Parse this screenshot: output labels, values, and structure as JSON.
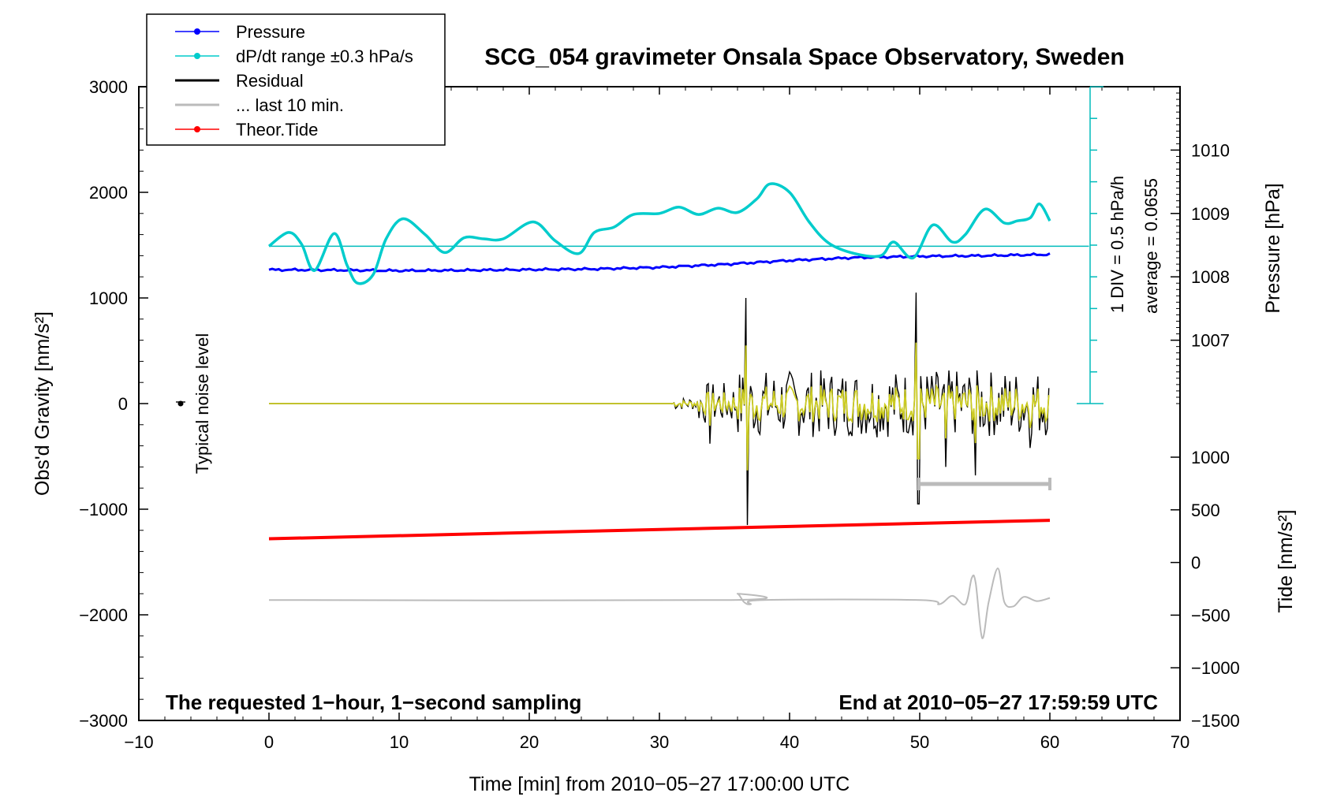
{
  "chart_data": {
    "type": "line",
    "title": "SCG_054 gravimeter Onsala Space Observatory, Sweden",
    "xlabel": "Time [min] from 2010−05−27 17:00:00 UTC",
    "ylabel_left": "Obs'd Gravity [nm/s²]",
    "ylabel_right_top": "Pressure [hPa]",
    "ylabel_right_bottom": "Tide [nm/s²]",
    "xlim": [
      -10,
      70
    ],
    "ylim_left": [
      -3000,
      3000
    ],
    "x_ticks": [
      "−10",
      "0",
      "10",
      "20",
      "30",
      "40",
      "50",
      "60",
      "70"
    ],
    "y_left_ticks": [
      "3000",
      "2000",
      "1000",
      "0",
      "−1000",
      "−2000",
      "−3000"
    ],
    "pressure_axis": {
      "ticks": [
        "1010",
        "1009",
        "1008",
        "1007"
      ],
      "range": [
        1006,
        1011
      ]
    },
    "tide_axis": {
      "ticks": [
        "1000",
        "500",
        "0",
        "−500",
        "−1000",
        "−1500"
      ],
      "range": [
        -1500,
        1000
      ]
    },
    "bottom_left_note": "The requested 1−hour, 1−second sampling",
    "bottom_right_note": "End at 2010−05−27 17:59:59 UTC",
    "noise_label": "Typical noise level",
    "scale_bar_label": "1 DIV = 0.5 hPa/h",
    "average_label": "average = 0.0655",
    "legend": [
      {
        "label": "Pressure",
        "color": "#0000ff",
        "marker": true
      },
      {
        "label": "dP/dt range ±0.3 hPa/s",
        "color": "#00cccc",
        "marker": true
      },
      {
        "label": "Residual",
        "color": "#000000",
        "marker": false
      },
      {
        "label": "... last 10 min.",
        "color": "#bbbbbb",
        "marker": false
      },
      {
        "label": "Theor.Tide",
        "color": "#ff0000",
        "marker": true
      }
    ],
    "series": [
      {
        "name": "Pressure",
        "color": "#0000ff",
        "x": [
          0,
          5,
          10,
          15,
          20,
          25,
          30,
          35,
          40,
          45,
          50,
          55,
          60
        ],
        "values": [
          1267,
          1264,
          1258,
          1262,
          1268,
          1274,
          1290,
          1318,
          1355,
          1382,
          1394,
          1400,
          1412
        ]
      },
      {
        "name": "dP/dt",
        "color": "#00cccc",
        "x": [
          0,
          1.5,
          2.5,
          3.5,
          5,
          6,
          6.8,
          8,
          9,
          10.3,
          12,
          13.5,
          15,
          16.5,
          18,
          20.3,
          22,
          23.8,
          25,
          26.5,
          28,
          30,
          31.5,
          33,
          34.5,
          36,
          37.5,
          38.5,
          40,
          41.5,
          43,
          45,
          47,
          48,
          49.5,
          51,
          52.5,
          53.5,
          55,
          56.5,
          57.5,
          58.5,
          59.2,
          60
        ],
        "values": [
          1490,
          1620,
          1510,
          1260,
          1610,
          1310,
          1140,
          1220,
          1560,
          1750,
          1600,
          1430,
          1570,
          1560,
          1560,
          1720,
          1540,
          1420,
          1620,
          1670,
          1790,
          1800,
          1860,
          1790,
          1850,
          1810,
          1940,
          2080,
          2000,
          1720,
          1520,
          1420,
          1400,
          1530,
          1380,
          1690,
          1530,
          1600,
          1840,
          1710,
          1730,
          1760,
          1890,
          1730
        ]
      },
      {
        "name": "Theor.Tide",
        "color": "#ff0000",
        "x": [
          0,
          60
        ],
        "values": [
          -1280,
          -1105
        ]
      },
      {
        "name": "Residual (filtered)",
        "color": "#bbbbbb",
        "x": [
          0,
          35.5,
          36,
          36.5,
          37,
          38,
          50,
          51.5,
          52.5,
          53.5,
          54,
          54.3,
          54.8,
          55.3,
          56,
          56.5,
          57.2,
          58,
          59,
          60
        ],
        "values": [
          -1860,
          -1860,
          -1800,
          -1880,
          -1900,
          -1860,
          -1860,
          -1900,
          -1820,
          -1900,
          -1650,
          -1700,
          -2220,
          -1880,
          -1560,
          -1880,
          -1920,
          -1830,
          -1870,
          -1840
        ]
      }
    ]
  }
}
